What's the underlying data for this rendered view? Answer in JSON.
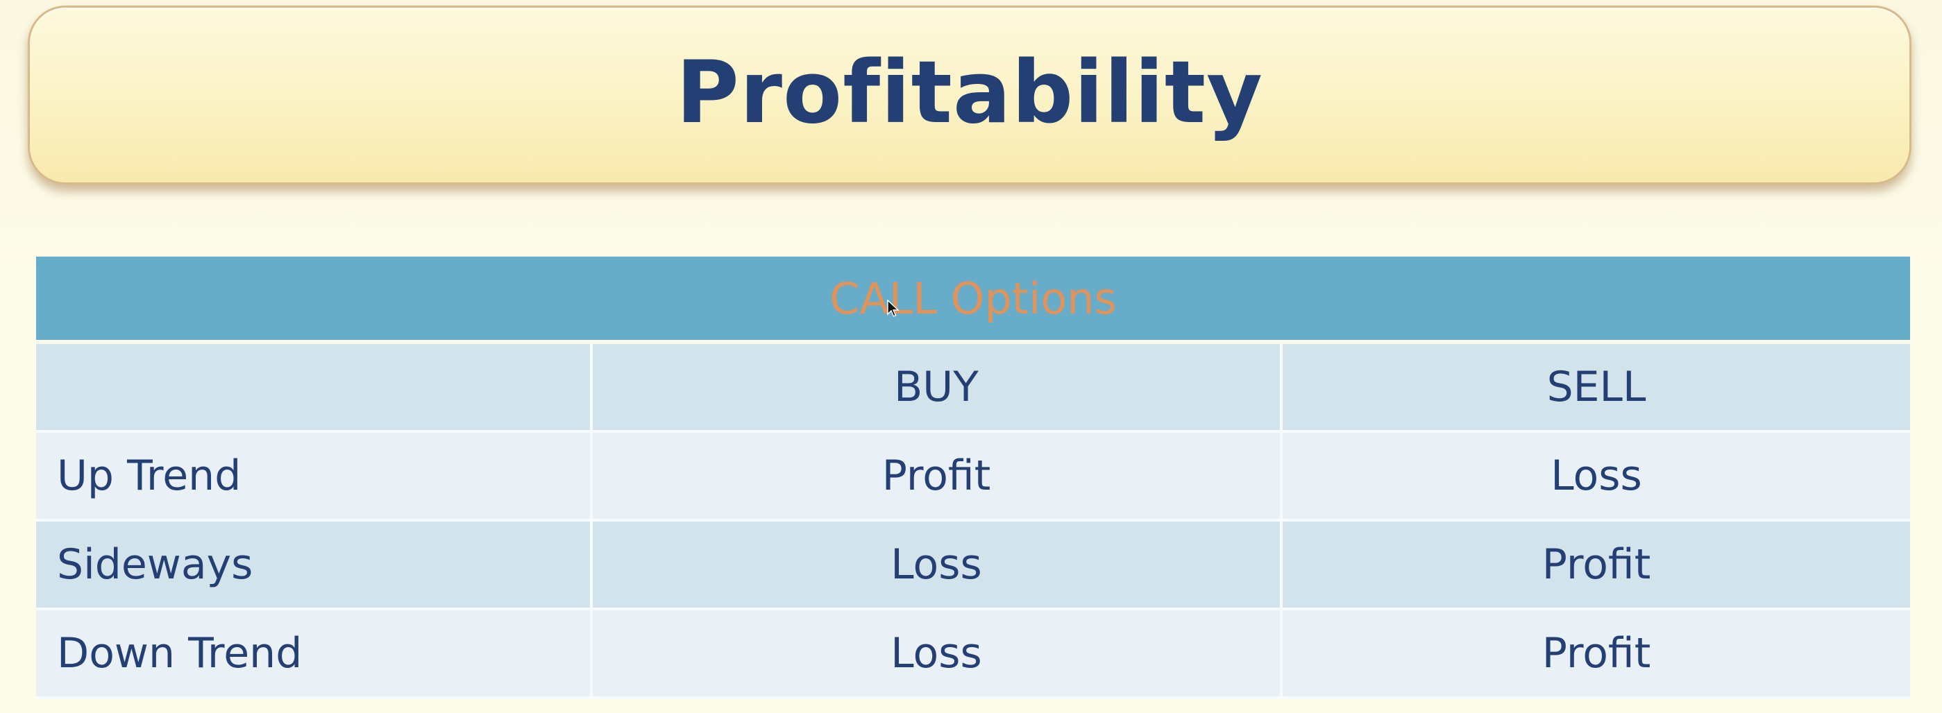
{
  "slide": {
    "title": "Profitability"
  },
  "table": {
    "header": "CALL Options",
    "columns": [
      "",
      "BUY",
      "SELL"
    ],
    "rows": [
      {
        "label": "Up Trend",
        "buy": "Profit",
        "sell": "Loss"
      },
      {
        "label": "Sideways",
        "buy": "Loss",
        "sell": "Profit"
      },
      {
        "label": "Down Trend",
        "buy": "Loss",
        "sell": "Profit"
      }
    ]
  },
  "colors": {
    "title_text": "#233f74",
    "header_bar": "#67acc8",
    "header_text": "#e0935a",
    "row_dark": "#d3e3ec",
    "row_light": "#e9f1f7"
  },
  "icons": {
    "cursor": "mouse-pointer-icon"
  }
}
